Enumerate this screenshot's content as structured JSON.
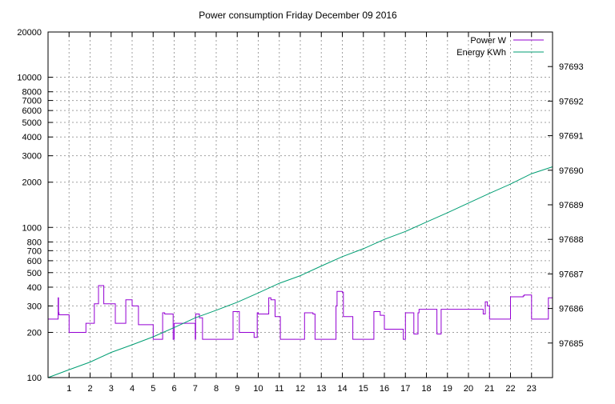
{
  "chart_data": {
    "type": "line",
    "title": "Power consumption Friday December 09 2016",
    "xlabel": "",
    "ylabel": "",
    "y2label": "",
    "xlim": [
      0,
      24
    ],
    "ylim": [
      100,
      20000
    ],
    "y_scale": "log",
    "y2lim": [
      97684.0,
      97694.0
    ],
    "grid": true,
    "legend_position": "top-right",
    "x_ticks": [
      1,
      2,
      3,
      4,
      5,
      6,
      7,
      8,
      9,
      10,
      11,
      12,
      13,
      14,
      15,
      16,
      17,
      18,
      19,
      20,
      21,
      22,
      23
    ],
    "y_ticks": [
      100,
      200,
      300,
      400,
      500,
      600,
      700,
      800,
      1000,
      2000,
      3000,
      4000,
      5000,
      6000,
      7000,
      8000,
      10000,
      20000
    ],
    "y2_ticks": [
      97685,
      97686,
      97687,
      97688,
      97689,
      97690,
      97691,
      97692,
      97693
    ],
    "series": [
      {
        "name": "Power W",
        "axis": "left",
        "color": "#9400d3",
        "x": [
          0,
          0.45,
          0.48,
          0.5,
          0.52,
          1.0,
          1.05,
          1.8,
          2.2,
          2.4,
          2.55,
          2.65,
          2.7,
          3.2,
          3.7,
          3.9,
          4.0,
          4.3,
          4.4,
          5.0,
          5.1,
          5.45,
          5.55,
          5.9,
          5.95,
          6.0,
          6.05,
          6.9,
          7.0,
          7.02,
          7.1,
          7.2,
          7.35,
          7.7,
          8.0,
          8.8,
          9.0,
          9.1,
          9.2,
          9.7,
          9.8,
          9.95,
          10.0,
          10.05,
          10.5,
          10.6,
          10.8,
          11.0,
          11.05,
          12.0,
          12.2,
          12.6,
          12.7,
          13.0,
          13.7,
          13.75,
          13.8,
          14.0,
          14.05,
          14.4,
          14.5,
          15.1,
          15.5,
          15.75,
          15.8,
          16.0,
          16.5,
          16.9,
          17.0,
          17.2,
          17.4,
          17.6,
          17.65,
          17.75,
          17.8,
          18.0,
          18.5,
          18.6,
          18.7,
          19.0,
          20.5,
          20.7,
          20.8,
          20.9,
          21.0,
          21.6,
          22.0,
          22.5,
          22.6,
          22.65,
          23.0,
          23.5,
          23.8,
          24.0
        ],
        "values": [
          245,
          245,
          340,
          270,
          262,
          200,
          200,
          230,
          310,
          410,
          410,
          310,
          310,
          230,
          330,
          330,
          300,
          225,
          225,
          180,
          180,
          270,
          265,
          265,
          180,
          230,
          230,
          230,
          180,
          265,
          265,
          250,
          180,
          180,
          180,
          275,
          275,
          200,
          200,
          200,
          185,
          270,
          265,
          265,
          340,
          330,
          255,
          255,
          180,
          180,
          270,
          265,
          180,
          180,
          300,
          375,
          375,
          370,
          255,
          255,
          180,
          180,
          275,
          275,
          260,
          210,
          210,
          180,
          270,
          270,
          195,
          270,
          285,
          285,
          285,
          285,
          195,
          195,
          285,
          285,
          285,
          265,
          320,
          300,
          245,
          245,
          345,
          345,
          350,
          355,
          245,
          245,
          340,
          340
        ]
      },
      {
        "name": "Energy KWh",
        "axis": "right",
        "color": "#009e73",
        "x": [
          0,
          1,
          2,
          3,
          4,
          5,
          6,
          7,
          8,
          9,
          10,
          11,
          12,
          13,
          14,
          15,
          16,
          17,
          18,
          19,
          20,
          21,
          22,
          23,
          24
        ],
        "values": [
          97684.0,
          97684.23,
          97684.45,
          97684.73,
          97684.95,
          97685.18,
          97685.45,
          97685.73,
          97685.95,
          97686.18,
          97686.45,
          97686.73,
          97686.95,
          97687.23,
          97687.5,
          97687.73,
          97688.0,
          97688.23,
          97688.5,
          97688.77,
          97689.05,
          97689.33,
          97689.6,
          97689.9,
          97690.1
        ]
      }
    ]
  }
}
